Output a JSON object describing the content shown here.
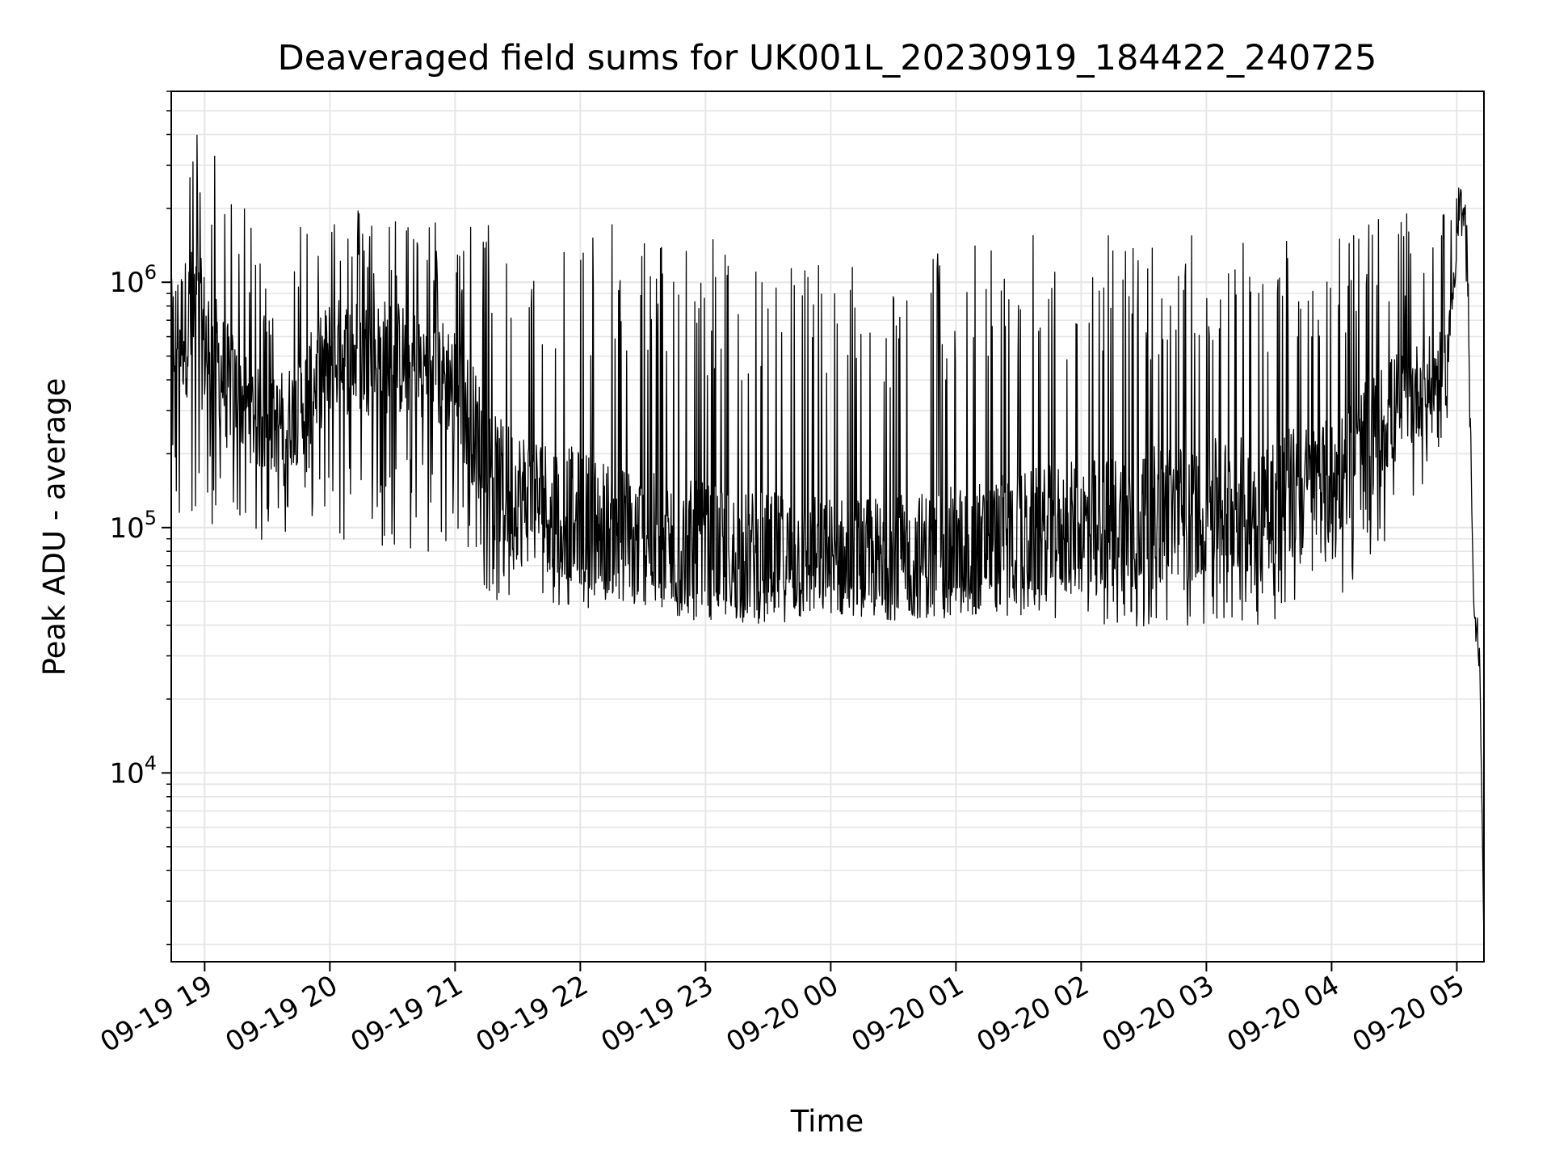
{
  "chart_data": {
    "type": "line",
    "title": "Deaveraged field sums for UK001L_20230919_184422_240725",
    "xlabel": "Time",
    "ylabel": "Peak ADU - average",
    "y_scale": "log",
    "x_range": [
      "2023-09-19 18:44",
      "2023-09-20 05:13"
    ],
    "ylim": [
      1700,
      6000000
    ],
    "x_ticks": [
      "09-19 19",
      "09-19 20",
      "09-19 21",
      "09-19 22",
      "09-19 23",
      "09-20 00",
      "09-20 01",
      "09-20 02",
      "09-20 03",
      "09-20 04",
      "09-20 05"
    ],
    "y_ticks": [
      {
        "base": "10",
        "exp": "4",
        "value": 10000
      },
      {
        "base": "10",
        "exp": "5",
        "value": 100000
      },
      {
        "base": "10",
        "exp": "6",
        "value": 1000000
      }
    ],
    "grid": true,
    "legend": "none",
    "line_color": "#000000",
    "series": [
      {
        "envelope": [
          {
            "time": "2023-09-19 18:44",
            "low": 100000,
            "median": 600000,
            "high": 2100000
          },
          {
            "time": "2023-09-19 18:55",
            "low": 60000,
            "median": 700000,
            "high": 4300000
          },
          {
            "time": "2023-09-19 19:10",
            "low": 130000,
            "median": 400000,
            "high": 3300000
          },
          {
            "time": "2023-09-19 19:30",
            "low": 80000,
            "median": 250000,
            "high": 1100000
          },
          {
            "time": "2023-09-19 19:45",
            "low": 110000,
            "median": 300000,
            "high": 2000000
          },
          {
            "time": "2023-09-19 20:00",
            "low": 90000,
            "median": 500000,
            "high": 2200000
          },
          {
            "time": "2023-09-19 20:30",
            "low": 80000,
            "median": 500000,
            "high": 1900000
          },
          {
            "time": "2023-09-19 21:00",
            "low": 80000,
            "median": 400000,
            "high": 1800000
          },
          {
            "time": "2023-09-19 21:20",
            "low": 50000,
            "median": 150000,
            "high": 1800000
          },
          {
            "time": "2023-09-19 22:00",
            "low": 45000,
            "median": 110000,
            "high": 1800000
          },
          {
            "time": "2023-09-19 22:30",
            "low": 45000,
            "median": 90000,
            "high": 1700000
          },
          {
            "time": "2023-09-19 23:00",
            "low": 40000,
            "median": 80000,
            "high": 1600000
          },
          {
            "time": "2023-09-19 23:30",
            "low": 40000,
            "median": 75000,
            "high": 1400000
          },
          {
            "time": "2023-09-20 00:00",
            "low": 45000,
            "median": 75000,
            "high": 1300000
          },
          {
            "time": "2023-09-20 00:30",
            "low": 42000,
            "median": 75000,
            "high": 1200000
          },
          {
            "time": "2023-09-20 01:00",
            "low": 42000,
            "median": 80000,
            "high": 1500000
          },
          {
            "time": "2023-09-20 01:30",
            "low": 42000,
            "median": 90000,
            "high": 1600000
          },
          {
            "time": "2023-09-20 02:00",
            "low": 42000,
            "median": 100000,
            "high": 1600000
          },
          {
            "time": "2023-09-20 02:30",
            "low": 35000,
            "median": 110000,
            "high": 1600000
          },
          {
            "time": "2023-09-20 03:00",
            "low": 40000,
            "median": 120000,
            "high": 1600000
          },
          {
            "time": "2023-09-20 03:30",
            "low": 40000,
            "median": 130000,
            "high": 1600000
          },
          {
            "time": "2023-09-20 04:00",
            "low": 50000,
            "median": 150000,
            "high": 1700000
          },
          {
            "time": "2023-09-20 04:30",
            "low": 80000,
            "median": 300000,
            "high": 1900000
          },
          {
            "time": "2023-09-20 04:55",
            "low": 250000,
            "median": 450000,
            "high": 1900000
          },
          {
            "time": "2023-09-20 05:02",
            "low": 1500000,
            "median": 2300000,
            "high": 2800000
          },
          {
            "time": "2023-09-20 05:05",
            "low": 900000,
            "median": 1200000,
            "high": 1800000
          },
          {
            "time": "2023-09-20 05:08",
            "low": 40000,
            "median": 50000,
            "high": 60000
          },
          {
            "time": "2023-09-20 05:11",
            "low": 25000,
            "median": 30000,
            "high": 35000
          },
          {
            "time": "2023-09-20 05:13",
            "low": 1900,
            "median": 2000,
            "high": 2100
          }
        ]
      }
    ]
  }
}
